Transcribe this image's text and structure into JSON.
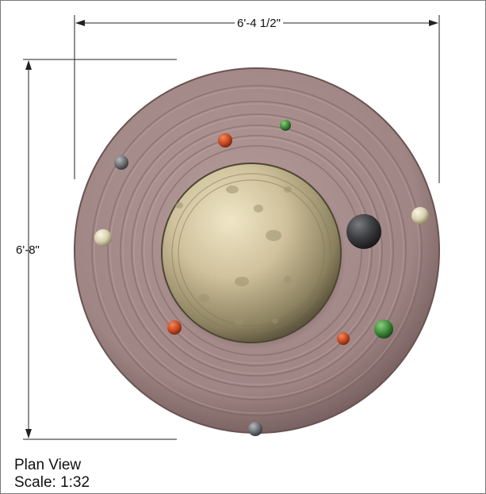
{
  "drawing": {
    "dimension_width": "6'-4 1/2\"",
    "dimension_height": "6'-8\"",
    "view_title": "Plan View",
    "view_scale": "Scale: 1:32"
  },
  "colors": {
    "disk": "#a48a89",
    "dome": "#c9bd98",
    "orange_gem": "#c94a22",
    "green_gem": "#3f8a3a",
    "gray_gem": "#6f7075",
    "cream_gem": "#d8cfae",
    "dark_gem": "#3e3f42",
    "dimension_line": "#222222"
  }
}
